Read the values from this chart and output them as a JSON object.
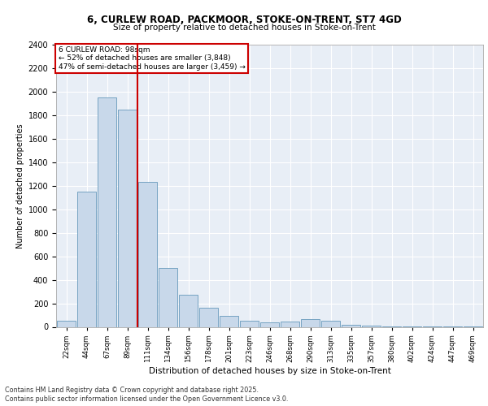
{
  "title1": "6, CURLEW ROAD, PACKMOOR, STOKE-ON-TRENT, ST7 4GD",
  "title2": "Size of property relative to detached houses in Stoke-on-Trent",
  "xlabel": "Distribution of detached houses by size in Stoke-on-Trent",
  "ylabel": "Number of detached properties",
  "annotation_line1": "6 CURLEW ROAD: 98sqm",
  "annotation_line2": "← 52% of detached houses are smaller (3,848)",
  "annotation_line3": "47% of semi-detached houses are larger (3,459) →",
  "footer1": "Contains HM Land Registry data © Crown copyright and database right 2025.",
  "footer2": "Contains public sector information licensed under the Open Government Licence v3.0.",
  "bar_categories": [
    "22sqm",
    "44sqm",
    "67sqm",
    "89sqm",
    "111sqm",
    "134sqm",
    "156sqm",
    "178sqm",
    "201sqm",
    "223sqm",
    "246sqm",
    "268sqm",
    "290sqm",
    "313sqm",
    "335sqm",
    "357sqm",
    "380sqm",
    "402sqm",
    "424sqm",
    "447sqm",
    "469sqm"
  ],
  "bar_values": [
    50,
    1150,
    1950,
    1850,
    1230,
    500,
    270,
    165,
    95,
    50,
    40,
    45,
    65,
    50,
    15,
    10,
    5,
    3,
    3,
    2,
    2
  ],
  "bar_color": "#c8d8ea",
  "bar_edge_color": "#6699bb",
  "vline_color": "#cc0000",
  "vline_x_idx": 3,
  "annotation_box_color": "#cc0000",
  "background_color": "#e8eef6",
  "grid_color": "#ffffff",
  "ylim": [
    0,
    2400
  ],
  "yticks": [
    0,
    200,
    400,
    600,
    800,
    1000,
    1200,
    1400,
    1600,
    1800,
    2000,
    2200,
    2400
  ]
}
